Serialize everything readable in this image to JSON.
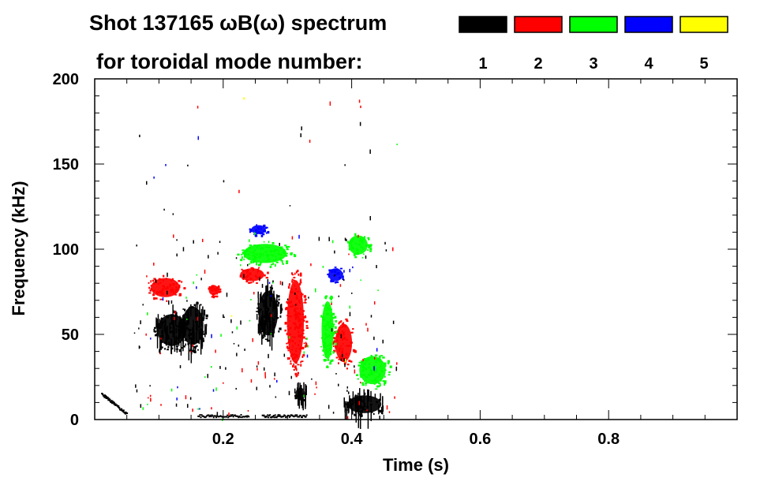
{
  "chart_data": {
    "type": "heatmap",
    "title": "Shot 137165 ωB(ω) spectrum",
    "legend_header": "for toroidal mode number:",
    "legend": [
      {
        "label": "1",
        "color": "#000000"
      },
      {
        "label": "2",
        "color": "#ff0000"
      },
      {
        "label": "3",
        "color": "#00ff00"
      },
      {
        "label": "4",
        "color": "#0000ff"
      },
      {
        "label": "5",
        "color": "#ffff00"
      }
    ],
    "xlabel": "Time (s)",
    "ylabel": "Frequency (kHz)",
    "xlim": [
      0.0,
      1.0
    ],
    "ylim": [
      0,
      200
    ],
    "xticks": [
      {
        "value": 0.2,
        "label": "0.2"
      },
      {
        "value": 0.4,
        "label": "0.4"
      },
      {
        "value": 0.6,
        "label": "0.6"
      },
      {
        "value": 0.8,
        "label": "0.8"
      }
    ],
    "yticks": [
      {
        "value": 0,
        "label": "0"
      },
      {
        "value": 50,
        "label": "50"
      },
      {
        "value": 100,
        "label": "100"
      },
      {
        "value": 150,
        "label": "150"
      },
      {
        "value": 200,
        "label": "200"
      }
    ],
    "features": [
      {
        "mode": "1",
        "kind": "blob",
        "t0": 0.09,
        "t1": 0.15,
        "f0": 40,
        "f1": 65
      },
      {
        "mode": "1",
        "kind": "blob",
        "t0": 0.13,
        "t1": 0.175,
        "f0": 40,
        "f1": 70
      },
      {
        "mode": "1",
        "kind": "blob",
        "t0": 0.25,
        "t1": 0.29,
        "f0": 45,
        "f1": 80
      },
      {
        "mode": "1",
        "kind": "blob",
        "t0": 0.385,
        "t1": 0.455,
        "f0": 2,
        "f1": 16
      },
      {
        "mode": "1",
        "kind": "blob",
        "t0": 0.31,
        "t1": 0.33,
        "f0": 10,
        "f1": 20
      },
      {
        "mode": "1",
        "kind": "line",
        "t0": 0.16,
        "t1": 0.24,
        "f0": 2,
        "f1": 2
      },
      {
        "mode": "1",
        "kind": "line",
        "t0": 0.26,
        "t1": 0.33,
        "f0": 2,
        "f1": 2
      },
      {
        "mode": "1",
        "kind": "line",
        "t0": 0.01,
        "t1": 0.05,
        "f0": 15,
        "f1": 3
      },
      {
        "mode": "2",
        "kind": "blob",
        "t0": 0.08,
        "t1": 0.14,
        "f0": 70,
        "f1": 85
      },
      {
        "mode": "2",
        "kind": "blob",
        "t0": 0.22,
        "t1": 0.27,
        "f0": 80,
        "f1": 90
      },
      {
        "mode": "2",
        "kind": "blob",
        "t0": 0.295,
        "t1": 0.33,
        "f0": 25,
        "f1": 90
      },
      {
        "mode": "2",
        "kind": "blob",
        "t0": 0.37,
        "t1": 0.405,
        "f0": 30,
        "f1": 60
      },
      {
        "mode": "2",
        "kind": "blob",
        "t0": 0.175,
        "t1": 0.195,
        "f0": 72,
        "f1": 80
      },
      {
        "mode": "3",
        "kind": "blob",
        "t0": 0.22,
        "t1": 0.31,
        "f0": 90,
        "f1": 105
      },
      {
        "mode": "3",
        "kind": "blob",
        "t0": 0.35,
        "t1": 0.375,
        "f0": 30,
        "f1": 75
      },
      {
        "mode": "3",
        "kind": "blob",
        "t0": 0.39,
        "t1": 0.43,
        "f0": 95,
        "f1": 110
      },
      {
        "mode": "3",
        "kind": "blob",
        "t0": 0.405,
        "t1": 0.46,
        "f0": 18,
        "f1": 40
      },
      {
        "mode": "4",
        "kind": "blob",
        "t0": 0.36,
        "t1": 0.39,
        "f0": 80,
        "f1": 90
      },
      {
        "mode": "4",
        "kind": "blob",
        "t0": 0.24,
        "t1": 0.27,
        "f0": 108,
        "f1": 115
      }
    ]
  }
}
